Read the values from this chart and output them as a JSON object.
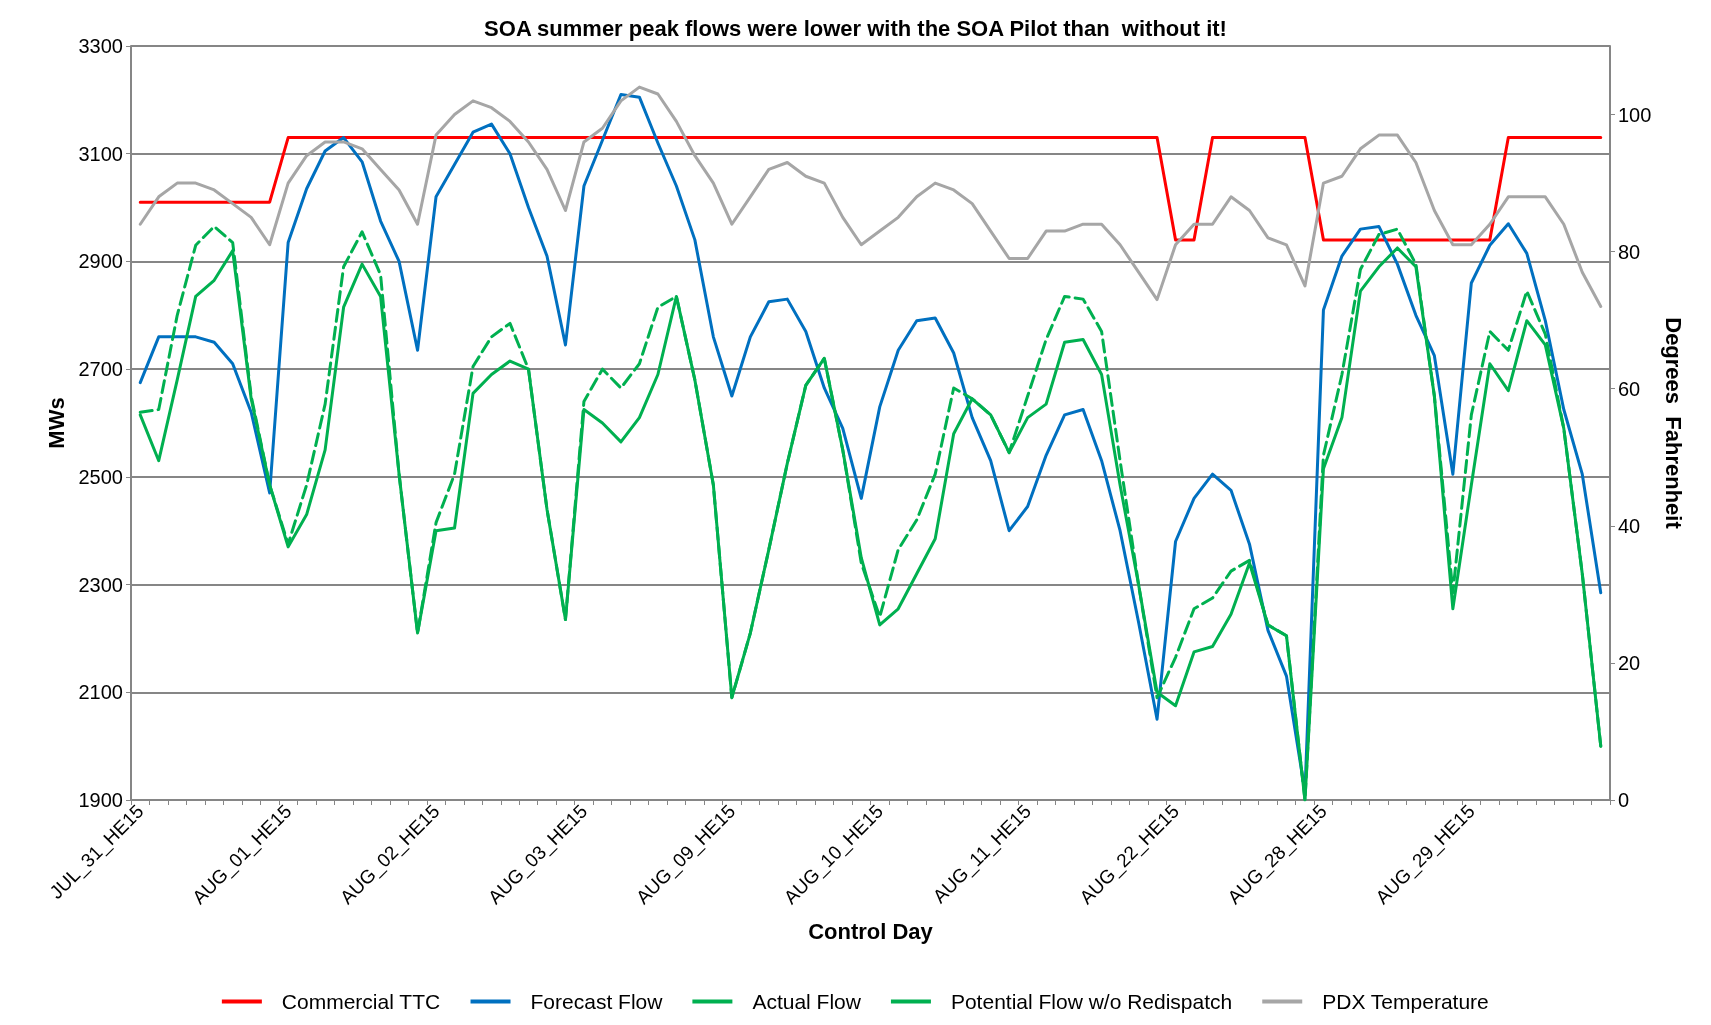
{
  "chart_data": {
    "type": "line",
    "title": "SOA summer peak flows were lower with the SOA Pilot than  without it!",
    "xlabel": "Control Day",
    "ylabel": "MWs",
    "y2label": "Degrees  Fahrenheit",
    "categories": [
      "JUL_31_HE15",
      null,
      null,
      null,
      null,
      null,
      null,
      null,
      "AUG_01_HE15",
      null,
      null,
      null,
      null,
      null,
      null,
      null,
      "AUG_02_HE15",
      null,
      null,
      null,
      null,
      null,
      null,
      null,
      "AUG_03_HE15",
      null,
      null,
      null,
      null,
      null,
      null,
      null,
      "AUG_09_HE15",
      null,
      null,
      null,
      null,
      null,
      null,
      null,
      "AUG_10_HE15",
      null,
      null,
      null,
      null,
      null,
      null,
      null,
      "AUG_11_HE15",
      null,
      null,
      null,
      null,
      null,
      null,
      null,
      "AUG_22_HE15",
      null,
      null,
      null,
      null,
      null,
      null,
      null,
      "AUG_28_HE15",
      null,
      null,
      null,
      null,
      null,
      null,
      null,
      "AUG_29_HE15",
      null,
      null,
      null,
      null,
      null,
      null,
      null
    ],
    "series": [
      {
        "name": "Commercial TTC",
        "color": "#ff0000",
        "values": [
          3010,
          3010,
          3010,
          3010,
          3010,
          3010,
          3010,
          3010,
          3130,
          3130,
          3130,
          3130,
          3130,
          3130,
          3130,
          3130,
          3130,
          3130,
          3130,
          3130,
          3130,
          3130,
          3130,
          3130,
          3130,
          3130,
          3130,
          3130,
          3130,
          3130,
          3130,
          3130,
          3130,
          3130,
          3130,
          3130,
          3130,
          3130,
          3130,
          3130,
          3130,
          3130,
          3130,
          3130,
          3130,
          3130,
          3130,
          3130,
          3130,
          3130,
          3130,
          3130,
          3130,
          3130,
          3130,
          3130,
          2940,
          2940,
          3130,
          3130,
          3130,
          3130,
          3130,
          3130,
          2940,
          2940,
          2940,
          2940,
          2940,
          2940,
          2940,
          2940,
          2940,
          2940,
          3130,
          3130,
          3130,
          3130,
          3130,
          3130
        ]
      },
      {
        "name": "Forecast Flow",
        "color": "#0070c0",
        "values": [
          2675,
          2760,
          2760,
          2760,
          2750,
          2710,
          2620,
          2470,
          2935,
          3035,
          3105,
          3130,
          3085,
          2975,
          2900,
          2735,
          3020,
          3080,
          3140,
          3155,
          3100,
          3000,
          2910,
          2745,
          3040,
          3125,
          3210,
          3205,
          3120,
          3040,
          2940,
          2760,
          2650,
          2760,
          2825,
          2830,
          2770,
          2665,
          2590,
          2460,
          2630,
          2735,
          2790,
          2795,
          2730,
          2610,
          2530,
          2400,
          2445,
          2540,
          2615,
          2625,
          2530,
          2400,
          2230,
          2050,
          2380,
          2460,
          2505,
          2475,
          2375,
          2215,
          2130,
          1915,
          2810,
          2910,
          2960,
          2965,
          2895,
          2800,
          2725,
          2505,
          2860,
          2930,
          2970,
          2915,
          2790,
          2625,
          2505,
          2285
        ]
      },
      {
        "name": "Actual Flow",
        "color": "#00b050",
        "values": [
          2615,
          2530,
          2680,
          2835,
          2865,
          2920,
          2645,
          2485,
          2370,
          2430,
          2550,
          2815,
          2895,
          2835,
          2505,
          2210,
          2400,
          2405,
          2655,
          2690,
          2715,
          2700,
          2440,
          2235,
          2625,
          2600,
          2565,
          2610,
          2690,
          2835,
          2680,
          2485,
          2090,
          2210,
          2365,
          2525,
          2670,
          2720,
          2550,
          2350,
          2225,
          2255,
          2320,
          2385,
          2580,
          2645,
          2615,
          2545,
          2610,
          2635,
          2750,
          2755,
          2690,
          2485,
          2300,
          2100,
          2075,
          2175,
          2185,
          2245,
          2340,
          2225,
          2205,
          1900,
          2515,
          2610,
          2845,
          2890,
          2925,
          2890,
          2650,
          2255,
          2485,
          2710,
          2660,
          2790,
          2745,
          2590,
          2320,
          2000
        ]
      },
      {
        "name": "Potential Flow w/o Redispatch",
        "color": "#00b050",
        "line_style": "dashed",
        "values": [
          2620,
          2625,
          2800,
          2930,
          2965,
          2935,
          2650,
          2485,
          2375,
          2485,
          2635,
          2890,
          2955,
          2875,
          2505,
          2210,
          2415,
          2505,
          2705,
          2760,
          2785,
          2700,
          2440,
          2235,
          2640,
          2700,
          2665,
          2710,
          2815,
          2835,
          2680,
          2485,
          2090,
          2210,
          2365,
          2525,
          2670,
          2720,
          2550,
          2340,
          2240,
          2365,
          2420,
          2505,
          2665,
          2645,
          2615,
          2545,
          2650,
          2755,
          2835,
          2830,
          2770,
          2530,
          2300,
          2090,
          2165,
          2255,
          2275,
          2325,
          2345,
          2225,
          2205,
          1900,
          2540,
          2690,
          2885,
          2950,
          2960,
          2895,
          2650,
          2285,
          2615,
          2770,
          2735,
          2845,
          2765,
          2590,
          2320,
          2000
        ]
      },
      {
        "name": "PDX Temperature",
        "color": "#a6a6a6",
        "axis": "y2",
        "values": [
          84,
          88,
          90,
          90,
          89,
          87,
          85,
          81,
          90,
          94,
          96,
          96,
          95,
          92,
          89,
          84,
          97,
          100,
          102,
          101,
          99,
          96,
          92,
          86,
          96,
          98,
          102,
          104,
          103,
          99,
          94,
          90,
          84,
          88,
          92,
          93,
          91,
          90,
          85,
          81,
          83,
          85,
          88,
          90,
          89,
          87,
          83,
          79,
          79,
          83,
          83,
          84,
          84,
          81,
          77,
          73,
          81,
          84,
          84,
          88,
          86,
          82,
          81,
          75,
          90,
          91,
          95,
          97,
          97,
          93,
          86,
          81,
          81,
          84,
          88,
          88,
          88,
          84,
          77,
          72
        ]
      }
    ],
    "ylim": [
      1900,
      3300
    ],
    "yticks": [
      1900,
      2100,
      2300,
      2500,
      2700,
      2900,
      3100,
      3300
    ],
    "y2lim": [
      0,
      110
    ],
    "y2ticks": [
      0,
      20,
      40,
      60,
      80,
      100
    ],
    "grid": "y",
    "legend": "bottom",
    "marker": "none",
    "line_style": "solid"
  }
}
